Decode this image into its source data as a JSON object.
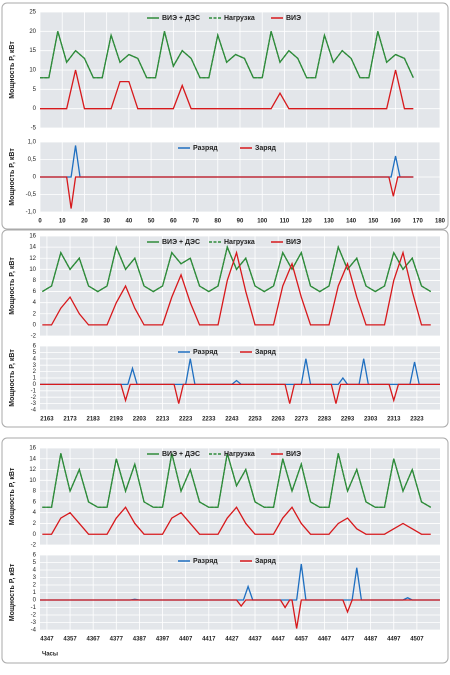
{
  "chart_data": [
    {
      "type": "line",
      "y_label": "Мощность P, кВт",
      "xlim": [
        0,
        180
      ],
      "xticks": [
        0,
        10,
        20,
        30,
        40,
        50,
        60,
        70,
        80,
        90,
        100,
        110,
        120,
        130,
        140,
        150,
        160,
        170,
        180
      ],
      "xtick_labels": false,
      "ylim": [
        -5,
        25
      ],
      "yticks": [
        -5,
        0,
        5,
        10,
        15,
        20,
        25
      ],
      "grid": true,
      "x": [
        0,
        4,
        8,
        12,
        16,
        20,
        24,
        28,
        32,
        36,
        40,
        44,
        48,
        52,
        56,
        60,
        64,
        68,
        72,
        76,
        80,
        84,
        88,
        92,
        96,
        100,
        104,
        108,
        112,
        116,
        120,
        124,
        128,
        132,
        136,
        140,
        144,
        148,
        152,
        156,
        160,
        164,
        168
      ],
      "series": [
        {
          "name": "ВИЭ + ДЭС",
          "color": "#2e8b3a",
          "dash": false,
          "values": [
            8,
            8,
            20,
            12,
            15,
            13,
            8,
            8,
            19,
            12,
            14,
            13,
            8,
            8,
            20,
            11,
            15,
            13,
            8,
            8,
            19,
            12,
            14,
            13,
            8,
            8,
            20,
            12,
            15,
            13,
            8,
            8,
            19,
            12,
            15,
            13,
            8,
            8,
            20,
            12,
            14,
            13,
            8
          ]
        },
        {
          "name": "Нагрузка",
          "color": "#2e8b3a",
          "dash": true,
          "values": [
            8,
            8,
            20,
            12,
            15,
            13,
            8,
            8,
            19,
            12,
            14,
            13,
            8,
            8,
            20,
            11,
            15,
            13,
            8,
            8,
            19,
            12,
            14,
            13,
            8,
            8,
            20,
            12,
            15,
            13,
            8,
            8,
            19,
            12,
            15,
            13,
            8,
            8,
            20,
            12,
            14,
            13,
            8
          ]
        },
        {
          "name": "ВИЭ",
          "color": "#d7191c",
          "dash": false,
          "values": [
            0,
            0,
            0,
            0,
            10,
            0,
            0,
            0,
            0,
            7,
            7,
            0,
            0,
            0,
            0,
            0,
            6,
            0,
            0,
            0,
            0,
            0,
            0,
            0,
            0,
            0,
            0,
            4,
            0,
            0,
            0,
            0,
            0,
            0,
            0,
            0,
            0,
            0,
            0,
            0,
            10,
            0,
            0
          ]
        }
      ]
    },
    {
      "type": "line",
      "y_label": "Мощность P, кВт",
      "xlim": [
        0,
        180
      ],
      "xticks": [
        0,
        10,
        20,
        30,
        40,
        50,
        60,
        70,
        80,
        90,
        100,
        110,
        120,
        130,
        140,
        150,
        160,
        170,
        180
      ],
      "xtick_labels": true,
      "ylim": [
        -1,
        1
      ],
      "yticks": [
        {
          "value": -1,
          "label": "-1,0"
        },
        {
          "value": -0.5,
          "label": "-0,5"
        },
        0,
        {
          "value": 0.5,
          "label": "0,5"
        },
        {
          "value": 1,
          "label": "1,0"
        }
      ],
      "grid": true,
      "series": [
        {
          "name": "Разряд",
          "color": "#1f6fc0",
          "dash": false,
          "x": [
            0,
            14,
            16,
            18,
            158,
            160,
            162,
            168
          ],
          "values": [
            0,
            0,
            0.9,
            0,
            0,
            0.6,
            0,
            0
          ]
        },
        {
          "name": "Заряд",
          "color": "#d7191c",
          "dash": false,
          "x": [
            0,
            12,
            14,
            16,
            157,
            159,
            161,
            168
          ],
          "values": [
            0,
            0,
            -0.9,
            0,
            0,
            -0.55,
            0,
            0
          ]
        }
      ]
    },
    {
      "type": "line",
      "y_label": "Мощность P, кВт",
      "xlim": [
        2160,
        2333
      ],
      "xticks": [
        2163,
        2173,
        2183,
        2193,
        2203,
        2213,
        2223,
        2233,
        2243,
        2253,
        2263,
        2273,
        2283,
        2293,
        2303,
        2313,
        2323
      ],
      "xtick_labels": false,
      "ylim": [
        -2,
        16
      ],
      "yticks": [
        -2,
        0,
        2,
        4,
        6,
        8,
        10,
        12,
        14,
        16
      ],
      "grid": true,
      "x": [
        2161,
        2165,
        2169,
        2173,
        2177,
        2181,
        2185,
        2189,
        2193,
        2197,
        2201,
        2205,
        2209,
        2213,
        2217,
        2221,
        2225,
        2229,
        2233,
        2237,
        2241,
        2245,
        2249,
        2253,
        2257,
        2261,
        2265,
        2269,
        2273,
        2277,
        2281,
        2285,
        2289,
        2293,
        2297,
        2301,
        2305,
        2309,
        2313,
        2317,
        2321,
        2325,
        2329
      ],
      "series": [
        {
          "name": "ВИЭ + ДЭС",
          "color": "#2e8b3a",
          "dash": false,
          "values": [
            6,
            7,
            13,
            10,
            12,
            7,
            6,
            7,
            14,
            10,
            12,
            7,
            6,
            7,
            13,
            11,
            12,
            7,
            6,
            7,
            14,
            10,
            12,
            7,
            6,
            7,
            13,
            10,
            13,
            7,
            6,
            7,
            14,
            10,
            12,
            7,
            6,
            7,
            13,
            10,
            12,
            7,
            6
          ]
        },
        {
          "name": "Нагрузка",
          "color": "#2e8b3a",
          "dash": true,
          "values": [
            6,
            7,
            13,
            10,
            12,
            7,
            6,
            7,
            14,
            10,
            12,
            7,
            6,
            7,
            13,
            11,
            12,
            7,
            6,
            7,
            14,
            10,
            12,
            7,
            6,
            7,
            13,
            10,
            13,
            7,
            6,
            7,
            14,
            10,
            12,
            7,
            6,
            7,
            13,
            10,
            12,
            7,
            6
          ]
        },
        {
          "name": "ВИЭ",
          "color": "#d7191c",
          "dash": false,
          "values": [
            0,
            0,
            3,
            5,
            2,
            0,
            0,
            0,
            4,
            7,
            3,
            0,
            0,
            0,
            5,
            9,
            4,
            0,
            0,
            0,
            8,
            13,
            6,
            0,
            0,
            0,
            7,
            11,
            5,
            0,
            0,
            0,
            7,
            11,
            5,
            0,
            0,
            0,
            8,
            13,
            6,
            0,
            0
          ]
        }
      ]
    },
    {
      "type": "line",
      "y_label": "Мощность P, кВт",
      "xlim": [
        2160,
        2333
      ],
      "xticks": [
        2163,
        2173,
        2183,
        2193,
        2203,
        2213,
        2223,
        2233,
        2243,
        2253,
        2263,
        2273,
        2283,
        2293,
        2303,
        2313,
        2323
      ],
      "xtick_labels": true,
      "ylim": [
        -4,
        6
      ],
      "yticks": [
        -4,
        -3,
        -2,
        -1,
        0,
        1,
        2,
        3,
        4,
        5,
        6
      ],
      "grid": true,
      "series": [
        {
          "name": "Разряд",
          "color": "#1f6fc0",
          "dash": false,
          "x": [
            2160,
            2198,
            2200,
            2202,
            2223,
            2225,
            2227,
            2243,
            2245,
            2247,
            2273,
            2275,
            2277,
            2289,
            2291,
            2293,
            2298,
            2300,
            2302,
            2320,
            2322,
            2324,
            2333
          ],
          "values": [
            0,
            0,
            2.5,
            0,
            0,
            4,
            0,
            0,
            0.6,
            0,
            0,
            4,
            0,
            0,
            1,
            0,
            0,
            4,
            0,
            0,
            3.5,
            0,
            0
          ]
        },
        {
          "name": "Заряд",
          "color": "#d7191c",
          "dash": false,
          "x": [
            2160,
            2195,
            2197,
            2199,
            2218,
            2220,
            2222,
            2266,
            2268,
            2270,
            2286,
            2288,
            2290,
            2311,
            2313,
            2315,
            2333
          ],
          "values": [
            0,
            0,
            -2.5,
            0,
            0,
            -3,
            0,
            0,
            -3,
            0,
            0,
            -3,
            0,
            0,
            -2.5,
            0,
            0
          ]
        }
      ]
    },
    {
      "type": "line",
      "y_label": "Мощность P, кВт",
      "xlim": [
        4344,
        4517
      ],
      "xticks": [
        4347,
        4357,
        4367,
        4377,
        4387,
        4397,
        4407,
        4417,
        4427,
        4437,
        4447,
        4457,
        4467,
        4477,
        4487,
        4497,
        4507
      ],
      "xtick_labels": false,
      "ylim": [
        -2,
        16
      ],
      "yticks": [
        -2,
        0,
        2,
        4,
        6,
        8,
        10,
        12,
        14,
        16
      ],
      "grid": true,
      "x": [
        4345,
        4349,
        4353,
        4357,
        4361,
        4365,
        4369,
        4373,
        4377,
        4381,
        4385,
        4389,
        4393,
        4397,
        4401,
        4405,
        4409,
        4413,
        4417,
        4421,
        4425,
        4429,
        4433,
        4437,
        4441,
        4445,
        4449,
        4453,
        4457,
        4461,
        4465,
        4469,
        4473,
        4477,
        4481,
        4485,
        4489,
        4493,
        4497,
        4501,
        4505,
        4509,
        4513
      ],
      "series": [
        {
          "name": "ВИЭ + ДЭС",
          "color": "#2e8b3a",
          "dash": false,
          "values": [
            5,
            5,
            15,
            8,
            12,
            6,
            5,
            5,
            14,
            8,
            13,
            6,
            5,
            5,
            15,
            8,
            12,
            6,
            5,
            5,
            15,
            9,
            12,
            6,
            5,
            5,
            14,
            8,
            13,
            6,
            5,
            5,
            15,
            8,
            12,
            6,
            5,
            5,
            14,
            8,
            12,
            6,
            5
          ]
        },
        {
          "name": "Нагрузка",
          "color": "#2e8b3a",
          "dash": true,
          "values": [
            5,
            5,
            15,
            8,
            12,
            6,
            5,
            5,
            14,
            8,
            13,
            6,
            5,
            5,
            15,
            8,
            12,
            6,
            5,
            5,
            15,
            9,
            12,
            6,
            5,
            5,
            14,
            8,
            13,
            6,
            5,
            5,
            15,
            8,
            12,
            6,
            5,
            5,
            14,
            8,
            12,
            6,
            5
          ]
        },
        {
          "name": "ВИЭ",
          "color": "#d7191c",
          "dash": false,
          "values": [
            0,
            0,
            3,
            4,
            2,
            0,
            0,
            0,
            3,
            5,
            2,
            0,
            0,
            0,
            3,
            4,
            2,
            0,
            0,
            0,
            3,
            5,
            2,
            0,
            0,
            0,
            3,
            5,
            2,
            0,
            0,
            0,
            2,
            3,
            1,
            0,
            0,
            0,
            1,
            2,
            1,
            0,
            0
          ]
        }
      ]
    },
    {
      "type": "line",
      "y_label": "Мощность P, кВт",
      "x_label": "Часы",
      "xlim": [
        4344,
        4517
      ],
      "xticks": [
        4347,
        4357,
        4367,
        4377,
        4387,
        4397,
        4407,
        4417,
        4427,
        4437,
        4447,
        4457,
        4467,
        4477,
        4487,
        4497,
        4507
      ],
      "xtick_labels": true,
      "ylim": [
        -4,
        6
      ],
      "yticks": [
        -4,
        -3,
        -2,
        -1,
        0,
        1,
        2,
        3,
        4,
        5,
        6
      ],
      "grid": true,
      "series": [
        {
          "name": "Разряд",
          "color": "#1f6fc0",
          "dash": false,
          "x": [
            4344,
            4383,
            4385,
            4387,
            4432,
            4434,
            4436,
            4455,
            4457,
            4459,
            4479,
            4481,
            4483,
            4501,
            4503,
            4505,
            4517
          ],
          "values": [
            0,
            0,
            0.1,
            0,
            0,
            1.8,
            0,
            0,
            4.8,
            0,
            0,
            4.3,
            0,
            0,
            0.3,
            0,
            0
          ]
        },
        {
          "name": "Заряд",
          "color": "#d7191c",
          "dash": false,
          "x": [
            4344,
            4429,
            4431,
            4433,
            4448,
            4450,
            4452,
            4453,
            4455,
            4457,
            4475,
            4477,
            4479,
            4517
          ],
          "values": [
            0,
            0,
            -0.8,
            0,
            0,
            -1,
            0,
            0,
            -3.8,
            0,
            0,
            -1.6,
            0,
            0
          ]
        }
      ]
    }
  ]
}
